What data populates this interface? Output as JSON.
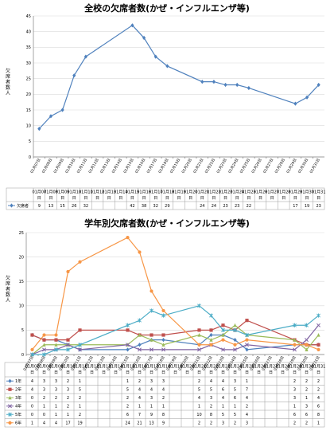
{
  "chart_data": [
    {
      "type": "line",
      "title": "全校の欠席者数(かぜ・インフルエンザ等)",
      "ylabel": "欠席者数人",
      "ylim": [
        0,
        45
      ],
      "yticks": [
        0,
        5,
        10,
        15,
        20,
        25,
        30,
        35,
        40,
        45
      ],
      "grid": true,
      "legend": "table",
      "categories": [
        "01月07日",
        "01月08日",
        "01月09日",
        "01月10日",
        "01月11日",
        "01月12日",
        "01月13日",
        "01月14日",
        "01月15日",
        "01月16日",
        "01月17日",
        "01月18日",
        "01月19日",
        "01月20日",
        "01月21日",
        "01月22日",
        "01月23日",
        "01月24日",
        "01月25日",
        "01月26日",
        "01月27日",
        "01月28日",
        "01月29日",
        "01月30日",
        "01月31日"
      ],
      "table_dates": [
        [
          "01月",
          "07日"
        ],
        [
          "01月",
          "08日"
        ],
        [
          "01月",
          "09日"
        ],
        [
          "01月",
          "10日"
        ],
        [
          "01月",
          "11日"
        ],
        [
          "01月",
          "12日"
        ],
        [
          "01月",
          "13日"
        ],
        [
          "01月",
          "14日"
        ],
        [
          "01月",
          "15日"
        ],
        [
          "01月",
          "16日"
        ],
        [
          "01月",
          "17日"
        ],
        [
          "01月",
          "18日"
        ],
        [
          "01月",
          "19日"
        ],
        [
          "01月",
          "20日"
        ],
        [
          "01月",
          "21日"
        ],
        [
          "01月",
          "22日"
        ],
        [
          "01月",
          "23日"
        ],
        [
          "01月",
          "24日"
        ],
        [
          "01月",
          "25日"
        ],
        [
          "01月",
          "26日"
        ],
        [
          "01月",
          "27日"
        ],
        [
          "01月",
          "28日"
        ],
        [
          "01月",
          "29日"
        ],
        [
          "01月",
          "30日"
        ],
        [
          "01月",
          "31日"
        ]
      ],
      "series": [
        {
          "name": "欠席者",
          "color": "#4f81bd",
          "values": [
            9,
            13,
            15,
            26,
            32,
            null,
            null,
            null,
            42,
            38,
            32,
            29,
            null,
            null,
            24,
            24,
            23,
            23,
            22,
            null,
            null,
            null,
            17,
            19,
            23
          ],
          "labels": [
            "9",
            "13",
            "15",
            "26",
            "32",
            "",
            "",
            "",
            "42",
            "38",
            "32",
            "29",
            "",
            "",
            "24",
            "24",
            "23",
            "23",
            "22",
            "",
            "",
            "",
            "17",
            "19",
            "23"
          ]
        }
      ]
    },
    {
      "type": "line",
      "title": "学年別欠席者数(かぜ・インフルエンザ等)",
      "ylabel": "欠席者数人",
      "ylim": [
        0,
        25
      ],
      "yticks": [
        0,
        5,
        10,
        15,
        20,
        25
      ],
      "grid": true,
      "legend": "table",
      "categories": [
        "01月07日",
        "01月08日",
        "01月09日",
        "01月10日",
        "01月11日",
        "01月12日",
        "01月13日",
        "01月14日",
        "01月15日",
        "01月16日",
        "01月17日",
        "01月18日",
        "01月19日",
        "01月20日",
        "01月21日",
        "01月22日",
        "01月23日",
        "01月24日",
        "01月25日",
        "01月26日",
        "01月27日",
        "01月28日",
        "01月29日",
        "01月30日",
        "01月31日"
      ],
      "table_dates": [
        [
          "01月",
          "07日"
        ],
        [
          "01月",
          "08日"
        ],
        [
          "01月",
          "09日"
        ],
        [
          "01月",
          "10日"
        ],
        [
          "01月",
          "11日"
        ],
        [
          "01月",
          "12日"
        ],
        [
          "01月",
          "13日"
        ],
        [
          "01月",
          "14日"
        ],
        [
          "01月",
          "15日"
        ],
        [
          "01月",
          "16日"
        ],
        [
          "01月",
          "17日"
        ],
        [
          "01月",
          "18日"
        ],
        [
          "01月",
          "19日"
        ],
        [
          "01月",
          "20日"
        ],
        [
          "01月",
          "21日"
        ],
        [
          "01月",
          "22日"
        ],
        [
          "01月",
          "23日"
        ],
        [
          "01月",
          "24日"
        ],
        [
          "01月",
          "25日"
        ],
        [
          "01月",
          "26日"
        ],
        [
          "01月",
          "27日"
        ],
        [
          "01月",
          "28日"
        ],
        [
          "01月",
          "29日"
        ],
        [
          "01月",
          "30日"
        ],
        [
          "01月",
          "31日"
        ]
      ],
      "series": [
        {
          "name": "1年",
          "color": "#4f81bd",
          "marker": "diamond",
          "values": [
            4,
            3,
            3,
            2,
            1,
            null,
            null,
            null,
            1,
            2,
            3,
            3,
            null,
            null,
            2,
            4,
            4,
            3,
            1,
            null,
            null,
            null,
            2,
            2,
            2
          ],
          "labels": [
            "4",
            "3",
            "3",
            "2",
            "1",
            "",
            "",
            "",
            "1",
            "2",
            "3",
            "3",
            "",
            "",
            "2",
            "4",
            "4",
            "3",
            "1",
            "",
            "",
            "",
            "2",
            "2",
            "2"
          ]
        },
        {
          "name": "2年",
          "color": "#c0504d",
          "marker": "square",
          "values": [
            4,
            3,
            3,
            3,
            5,
            null,
            null,
            null,
            5,
            4,
            4,
            4,
            null,
            null,
            5,
            5,
            6,
            5,
            7,
            null,
            null,
            null,
            3,
            2,
            2
          ],
          "labels": [
            "4",
            "3",
            "3",
            "3",
            "5",
            "",
            "",
            "",
            "5",
            "4",
            "4",
            "4",
            "",
            "",
            "5",
            "5",
            "6",
            "5",
            "7",
            "",
            "",
            "",
            "3",
            "2",
            "2"
          ]
        },
        {
          "name": "3年",
          "color": "#9bbb59",
          "marker": "triangle",
          "values": [
            0,
            2,
            2,
            2,
            2,
            null,
            null,
            null,
            2,
            4,
            3,
            2,
            null,
            null,
            4,
            3,
            4,
            6,
            4,
            null,
            null,
            null,
            3,
            1,
            4
          ],
          "labels": [
            "0",
            "2",
            "2",
            "2",
            "2",
            "",
            "",
            "",
            "2",
            "4",
            "3",
            "2",
            "",
            "",
            "4",
            "3",
            "4",
            "6",
            "4",
            "",
            "",
            "",
            "3",
            "1",
            "4"
          ]
        },
        {
          "name": "4年",
          "color": "#8064a2",
          "marker": "x",
          "values": [
            0,
            1,
            1,
            2,
            1,
            null,
            null,
            null,
            2,
            1,
            1,
            1,
            null,
            null,
            1,
            2,
            1,
            1,
            2,
            null,
            null,
            null,
            1,
            3,
            6
          ],
          "labels": [
            "0",
            "1",
            "1",
            "2",
            "1",
            "",
            "",
            "",
            "2",
            "1",
            "1",
            "1",
            "",
            "",
            "1",
            "2",
            "1",
            "1",
            "2",
            "",
            "",
            "",
            "1",
            "3",
            "6"
          ]
        },
        {
          "name": "5年",
          "color": "#4bacc6",
          "marker": "star",
          "values": [
            0,
            0,
            1,
            1,
            2,
            null,
            null,
            null,
            6,
            7,
            9,
            8,
            null,
            null,
            10,
            8,
            5,
            5,
            4,
            null,
            null,
            null,
            6,
            6,
            8
          ],
          "labels": [
            "0",
            "0",
            "1",
            "1",
            "2",
            "",
            "",
            "",
            "6",
            "7",
            "9",
            "8",
            "",
            "",
            "10",
            "8",
            "5",
            "5",
            "4",
            "",
            "",
            "",
            "6",
            "6",
            "8"
          ]
        },
        {
          "name": "6年",
          "color": "#f79646",
          "marker": "circle",
          "values": [
            1,
            4,
            4,
            17,
            19,
            null,
            null,
            null,
            24,
            21,
            13,
            9,
            null,
            null,
            2,
            2,
            3,
            2,
            3,
            null,
            null,
            null,
            2,
            2,
            1
          ],
          "labels": [
            "1",
            "4",
            "4",
            "17",
            "19",
            "",
            "",
            "",
            "24",
            "21",
            "13",
            "9",
            "",
            "",
            "2",
            "2",
            "3",
            "2",
            "3",
            "",
            "",
            "",
            "2",
            "2",
            "1"
          ]
        }
      ]
    }
  ]
}
